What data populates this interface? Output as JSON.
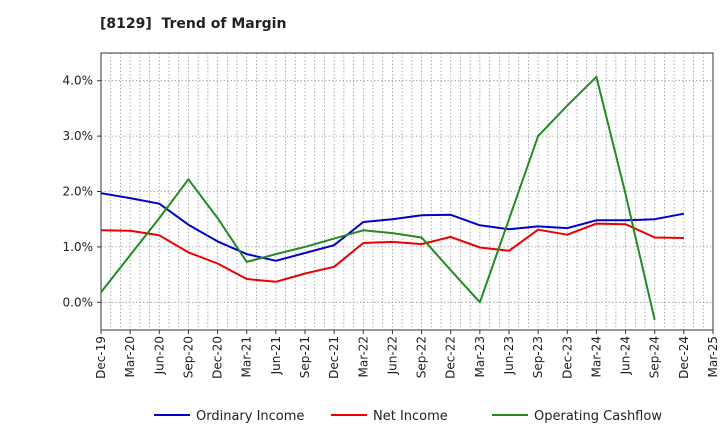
{
  "chart_data": {
    "type": "line",
    "title": "[8129]  Trend of Margin",
    "xlabel": "",
    "ylabel": "",
    "categories": [
      "Dec-19",
      "Mar-20",
      "Jun-20",
      "Sep-20",
      "Dec-20",
      "Mar-21",
      "Jun-21",
      "Sep-21",
      "Dec-21",
      "Mar-22",
      "Jun-22",
      "Sep-22",
      "Dec-22",
      "Mar-23",
      "Jun-23",
      "Sep-23",
      "Dec-23",
      "Mar-24",
      "Jun-24",
      "Sep-24",
      "Dec-24",
      "Mar-25"
    ],
    "ylim": [
      -0.5,
      4.5
    ],
    "yticks": [
      0.0,
      1.0,
      2.0,
      3.0,
      4.0
    ],
    "ytick_labels": [
      "0.0%",
      "1.0%",
      "2.0%",
      "3.0%",
      "4.0%"
    ],
    "grid": true,
    "legend_position": "bottom",
    "series": [
      {
        "name": "Ordinary Income",
        "color": "#0000cc",
        "values": [
          1.97,
          1.88,
          1.78,
          1.4,
          1.1,
          0.87,
          0.75,
          0.89,
          1.03,
          1.45,
          1.5,
          1.57,
          1.58,
          1.39,
          1.32,
          1.37,
          1.34,
          1.48,
          1.48,
          1.5,
          1.6,
          null
        ]
      },
      {
        "name": "Net Income",
        "color": "#ee0000",
        "values": [
          1.3,
          1.29,
          1.21,
          0.9,
          0.7,
          0.42,
          0.37,
          0.52,
          0.64,
          1.07,
          1.09,
          1.05,
          1.18,
          0.99,
          0.93,
          1.31,
          1.22,
          1.42,
          1.41,
          1.17,
          1.16,
          null
        ]
      },
      {
        "name": "Operating Cashflow",
        "color": "#228b22",
        "values": [
          0.18,
          0.85,
          1.52,
          2.22,
          1.52,
          0.73,
          0.87,
          1.0,
          1.15,
          1.3,
          1.25,
          1.17,
          0.58,
          0.0,
          1.5,
          3.0,
          3.55,
          4.07,
          1.95,
          -0.32,
          null,
          null
        ]
      }
    ]
  }
}
